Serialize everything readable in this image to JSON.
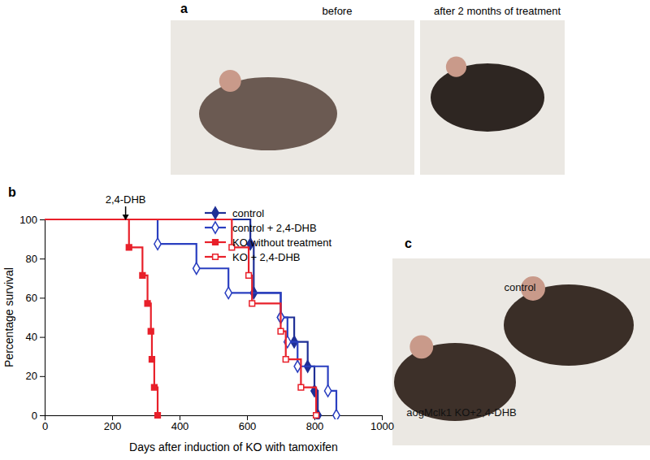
{
  "chart_data": {
    "type": "line",
    "line_style": "step",
    "xlabel": "Days after induction of KO with tamoxifen",
    "ylabel": "Percentage survival",
    "xlim": [
      0,
      1000
    ],
    "xticks": [
      0,
      200,
      400,
      600,
      800,
      1000
    ],
    "ylim": [
      0,
      100
    ],
    "yticks": [
      0,
      20,
      40,
      60,
      80,
      100
    ],
    "grid": false,
    "legend": "top-right",
    "annotations": [
      {
        "text": "2,4-DHB",
        "x": 240
      }
    ],
    "series": [
      {
        "name": "control",
        "color": "#1f2f96",
        "marker": "diamond",
        "x": [
          0,
          610,
          620,
          700,
          740,
          780,
          800,
          810
        ],
        "values": [
          100,
          87.5,
          62.5,
          50,
          37.5,
          25,
          12.5,
          0
        ]
      },
      {
        "name": "control + 2,4-DHB",
        "color": "#2a3fc0",
        "marker": "open-diamond",
        "x": [
          0,
          335,
          450,
          545,
          700,
          720,
          750,
          840,
          865
        ],
        "values": [
          100,
          87.5,
          75,
          62.5,
          50,
          37.5,
          25,
          12.5,
          0
        ]
      },
      {
        "name": "KO without treatment",
        "color": "#e8202a",
        "marker": "square",
        "x": [
          0,
          250,
          290,
          305,
          315,
          318,
          325,
          335
        ],
        "values": [
          100,
          85.7,
          71.4,
          57.1,
          42.9,
          28.6,
          14.3,
          0
        ]
      },
      {
        "name": "KO + 2,4-DHB",
        "color": "#e8202a",
        "marker": "open-square",
        "x": [
          0,
          555,
          605,
          615,
          700,
          715,
          760,
          805
        ],
        "values": [
          100,
          85.7,
          71.4,
          57.1,
          42.9,
          28.6,
          14.3,
          0
        ]
      }
    ]
  },
  "panels": {
    "a": {
      "label": "a",
      "captions": [
        "before",
        "after 2 months of treatment"
      ]
    },
    "b": {
      "label": "b"
    },
    "c": {
      "label": "c",
      "captions": [
        "control",
        "aogMclk1 KO+2,4-DHB"
      ]
    }
  }
}
